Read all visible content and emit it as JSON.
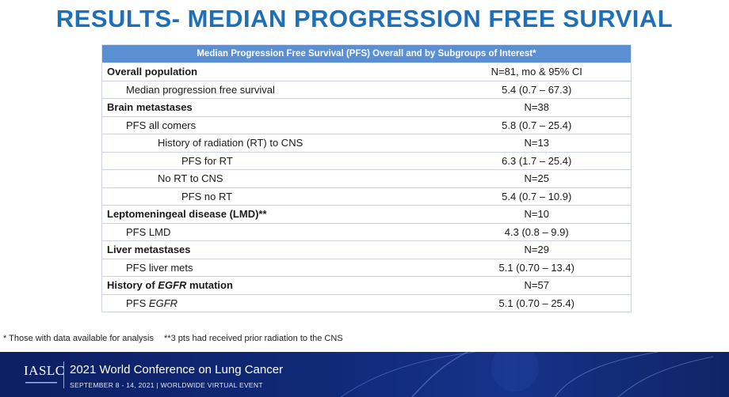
{
  "slide": {
    "title": "RESULTS- MEDIAN PROGRESSION FREE SURVIAL"
  },
  "table": {
    "header": "Median Progression Free Survival  (PFS) Overall and by Subgroups of Interest*",
    "rows": [
      {
        "label": "Overall population",
        "value": "N=81, mo & 95% CI",
        "level": 0
      },
      {
        "label": "Median progression free survival",
        "value": "5.4 (0.7 – 67.3)",
        "level": 1
      },
      {
        "label": "Brain metastases",
        "value": "N=38",
        "level": 0
      },
      {
        "label": "PFS all comers",
        "value": "5.8 (0.7 – 25.4)",
        "level": 1
      },
      {
        "label": "History of radiation (RT) to CNS",
        "value": "N=13",
        "level": 2
      },
      {
        "label": "PFS for RT",
        "value": "6.3 (1.7 – 25.4)",
        "level": 3
      },
      {
        "label": "No RT to CNS",
        "value": "N=25",
        "level": 2
      },
      {
        "label": "PFS no RT",
        "value": "5.4 (0.7 – 10.9)",
        "level": 3
      },
      {
        "label": "Leptomeningeal disease (LMD)**",
        "value": "N=10",
        "level": 0
      },
      {
        "label": "PFS LMD",
        "value": "4.3 (0.8 – 9.9)",
        "level": 1
      },
      {
        "label": "Liver metastases",
        "value": "N=29",
        "level": 0
      },
      {
        "label": "PFS liver mets",
        "value": "5.1 (0.70 – 13.4)",
        "level": 1
      },
      {
        "label": "History of EGFR mutation",
        "value": "N=57",
        "level": 0,
        "italic_part": "EGFR"
      },
      {
        "label": "PFS EGFR",
        "value": "5.1 (0.70 – 25.4)",
        "level": 1,
        "italic_part": "EGFR"
      }
    ]
  },
  "footnotes": {
    "note1": "* Those with data available for analysis",
    "note2": "**3 pts had received prior radiation to the CNS"
  },
  "banner": {
    "logo": "IASLC",
    "title": "2021 World Conference on Lung Cancer",
    "subtitle": "SEPTEMBER 8 - 14, 2021 | WORLDWIDE VIRTUAL EVENT"
  }
}
